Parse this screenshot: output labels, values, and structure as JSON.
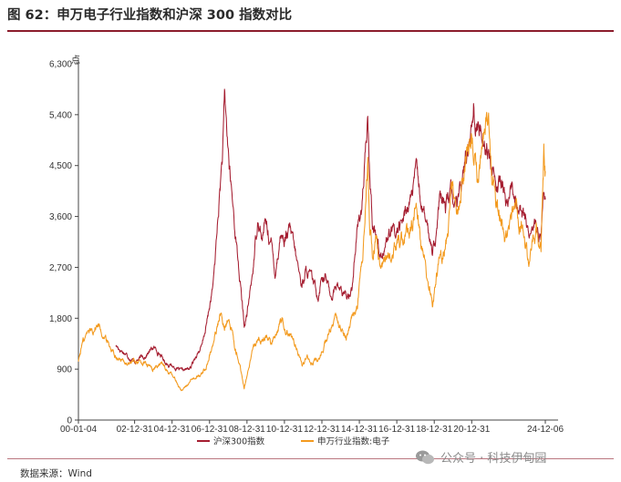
{
  "title": "图 62：申万电子行业指数和沪深 300 指数对比",
  "source": "数据来源：Wind",
  "watermark": "公众号 · 科技伊甸园",
  "colors": {
    "csi300": "#a51d30",
    "sw_electronics": "#f39a1e",
    "rule": "#8c1c2c"
  },
  "chart_data": {
    "type": "line",
    "unit_label": "点",
    "ylim": [
      0,
      6300
    ],
    "yticks": [
      "0",
      "900",
      "1,800",
      "2,700",
      "3,600",
      "4,500",
      "5,400",
      "6,300"
    ],
    "ytick_values": [
      0,
      900,
      1800,
      2700,
      3600,
      4500,
      5400,
      6300
    ],
    "xticks": [
      "00-01-04",
      "02-12-31",
      "04-12-31",
      "06-12-31",
      "08-12-31",
      "10-12-31",
      "12-12-31",
      "14-12-31",
      "16-12-31",
      "18-12-31",
      "20-12-31",
      "24-12-06"
    ],
    "xtick_years": [
      2000.0,
      2003.0,
      2005.0,
      2007.0,
      2009.0,
      2011.0,
      2013.0,
      2015.0,
      2017.0,
      2019.0,
      2021.0,
      2024.93
    ],
    "xlim": [
      2000.0,
      2024.93
    ],
    "legend_position": "bottom",
    "series": [
      {
        "name": "沪深300指数",
        "color": "#a51d30",
        "start": 2002.0,
        "points": [
          [
            2002.0,
            1316
          ],
          [
            2002.5,
            1180
          ],
          [
            2003.0,
            1040
          ],
          [
            2003.5,
            1120
          ],
          [
            2004.0,
            1280
          ],
          [
            2004.3,
            1200
          ],
          [
            2004.6,
            1030
          ],
          [
            2005.0,
            960
          ],
          [
            2005.5,
            860
          ],
          [
            2006.0,
            920
          ],
          [
            2006.3,
            1160
          ],
          [
            2006.6,
            1300
          ],
          [
            2006.9,
            1800
          ],
          [
            2007.2,
            2400
          ],
          [
            2007.5,
            3800
          ],
          [
            2007.7,
            4700
          ],
          [
            2007.8,
            5600
          ],
          [
            2007.9,
            5200
          ],
          [
            2008.1,
            4300
          ],
          [
            2008.3,
            3600
          ],
          [
            2008.5,
            2900
          ],
          [
            2008.7,
            2200
          ],
          [
            2008.85,
            1650
          ],
          [
            2009.0,
            1850
          ],
          [
            2009.3,
            2600
          ],
          [
            2009.6,
            3650
          ],
          [
            2009.8,
            3200
          ],
          [
            2010.0,
            3500
          ],
          [
            2010.3,
            3100
          ],
          [
            2010.5,
            2600
          ],
          [
            2010.8,
            3300
          ],
          [
            2011.0,
            3200
          ],
          [
            2011.3,
            3350
          ],
          [
            2011.6,
            2900
          ],
          [
            2011.9,
            2400
          ],
          [
            2012.2,
            2650
          ],
          [
            2012.5,
            2450
          ],
          [
            2012.8,
            2200
          ],
          [
            2013.0,
            2600
          ],
          [
            2013.2,
            2520
          ],
          [
            2013.5,
            2200
          ],
          [
            2013.8,
            2400
          ],
          [
            2014.0,
            2300
          ],
          [
            2014.3,
            2150
          ],
          [
            2014.6,
            2350
          ],
          [
            2014.9,
            3400
          ],
          [
            2015.1,
            3700
          ],
          [
            2015.3,
            4500
          ],
          [
            2015.45,
            5300
          ],
          [
            2015.55,
            4300
          ],
          [
            2015.7,
            3500
          ],
          [
            2016.0,
            3200
          ],
          [
            2016.1,
            2900
          ],
          [
            2016.4,
            3150
          ],
          [
            2016.7,
            3300
          ],
          [
            2017.0,
            3350
          ],
          [
            2017.3,
            3500
          ],
          [
            2017.6,
            3800
          ],
          [
            2017.9,
            4100
          ],
          [
            2018.05,
            4350
          ],
          [
            2018.3,
            3850
          ],
          [
            2018.6,
            3400
          ],
          [
            2018.9,
            3050
          ],
          [
            2019.1,
            3300
          ],
          [
            2019.3,
            3900
          ],
          [
            2019.6,
            3750
          ],
          [
            2019.9,
            4050
          ],
          [
            2020.2,
            3700
          ],
          [
            2020.5,
            4300
          ],
          [
            2020.8,
            4800
          ],
          [
            2021.1,
            5650
          ],
          [
            2021.2,
            5200
          ],
          [
            2021.5,
            5100
          ],
          [
            2021.8,
            4900
          ],
          [
            2022.0,
            4650
          ],
          [
            2022.3,
            4000
          ],
          [
            2022.6,
            4200
          ],
          [
            2022.9,
            3800
          ],
          [
            2023.1,
            4100
          ],
          [
            2023.4,
            3900
          ],
          [
            2023.7,
            3650
          ],
          [
            2023.95,
            3400
          ],
          [
            2024.1,
            3300
          ],
          [
            2024.4,
            3500
          ],
          [
            2024.6,
            3250
          ],
          [
            2024.7,
            3100
          ],
          [
            2024.8,
            4000
          ],
          [
            2024.93,
            3900
          ]
        ]
      },
      {
        "name": "申万行业指数:电子",
        "color": "#f39a1e",
        "start": 2000.0,
        "points": [
          [
            2000.0,
            1050
          ],
          [
            2000.2,
            1350
          ],
          [
            2000.5,
            1550
          ],
          [
            2000.8,
            1620
          ],
          [
            2001.1,
            1700
          ],
          [
            2001.5,
            1400
          ],
          [
            2001.9,
            1200
          ],
          [
            2002.3,
            1050
          ],
          [
            2002.7,
            1000
          ],
          [
            2003.0,
            1050
          ],
          [
            2003.5,
            1000
          ],
          [
            2004.0,
            900
          ],
          [
            2004.4,
            1000
          ],
          [
            2004.8,
            860
          ],
          [
            2005.2,
            700
          ],
          [
            2005.5,
            530
          ],
          [
            2005.9,
            650
          ],
          [
            2006.3,
            750
          ],
          [
            2006.6,
            820
          ],
          [
            2006.9,
            1000
          ],
          [
            2007.2,
            1400
          ],
          [
            2007.5,
            1750
          ],
          [
            2007.6,
            1900
          ],
          [
            2007.8,
            1700
          ],
          [
            2008.0,
            1800
          ],
          [
            2008.3,
            1400
          ],
          [
            2008.6,
            1000
          ],
          [
            2008.85,
            560
          ],
          [
            2009.1,
            900
          ],
          [
            2009.4,
            1300
          ],
          [
            2009.7,
            1450
          ],
          [
            2010.0,
            1500
          ],
          [
            2010.3,
            1350
          ],
          [
            2010.6,
            1600
          ],
          [
            2010.9,
            1850
          ],
          [
            2011.1,
            1650
          ],
          [
            2011.4,
            1450
          ],
          [
            2011.7,
            1250
          ],
          [
            2011.95,
            950
          ],
          [
            2012.2,
            1150
          ],
          [
            2012.5,
            1050
          ],
          [
            2012.8,
            1050
          ],
          [
            2013.1,
            1300
          ],
          [
            2013.4,
            1550
          ],
          [
            2013.7,
            1750
          ],
          [
            2014.0,
            1600
          ],
          [
            2014.3,
            1500
          ],
          [
            2014.6,
            1750
          ],
          [
            2014.9,
            2000
          ],
          [
            2015.1,
            2600
          ],
          [
            2015.3,
            3400
          ],
          [
            2015.45,
            4600
          ],
          [
            2015.55,
            3500
          ],
          [
            2015.7,
            2900
          ],
          [
            2015.9,
            3300
          ],
          [
            2016.1,
            2700
          ],
          [
            2016.4,
            2850
          ],
          [
            2016.7,
            3050
          ],
          [
            2017.0,
            3100
          ],
          [
            2017.3,
            3200
          ],
          [
            2017.6,
            3350
          ],
          [
            2017.9,
            3550
          ],
          [
            2018.05,
            3750
          ],
          [
            2018.3,
            3100
          ],
          [
            2018.6,
            2500
          ],
          [
            2018.9,
            2050
          ],
          [
            2019.1,
            2500
          ],
          [
            2019.4,
            2900
          ],
          [
            2019.7,
            3300
          ],
          [
            2020.0,
            4100
          ],
          [
            2020.2,
            3500
          ],
          [
            2020.5,
            4300
          ],
          [
            2020.8,
            4700
          ],
          [
            2021.0,
            4900
          ],
          [
            2021.3,
            4300
          ],
          [
            2021.6,
            5100
          ],
          [
            2021.9,
            5250
          ],
          [
            2022.1,
            4500
          ],
          [
            2022.4,
            3700
          ],
          [
            2022.7,
            3400
          ],
          [
            2022.9,
            3100
          ],
          [
            2023.1,
            3500
          ],
          [
            2023.4,
            3800
          ],
          [
            2023.6,
            3450
          ],
          [
            2023.8,
            3300
          ],
          [
            2024.0,
            2850
          ],
          [
            2024.1,
            2700
          ],
          [
            2024.3,
            3200
          ],
          [
            2024.5,
            3400
          ],
          [
            2024.7,
            3050
          ],
          [
            2024.8,
            4400
          ],
          [
            2024.85,
            4800
          ],
          [
            2024.93,
            4400
          ]
        ]
      }
    ]
  }
}
